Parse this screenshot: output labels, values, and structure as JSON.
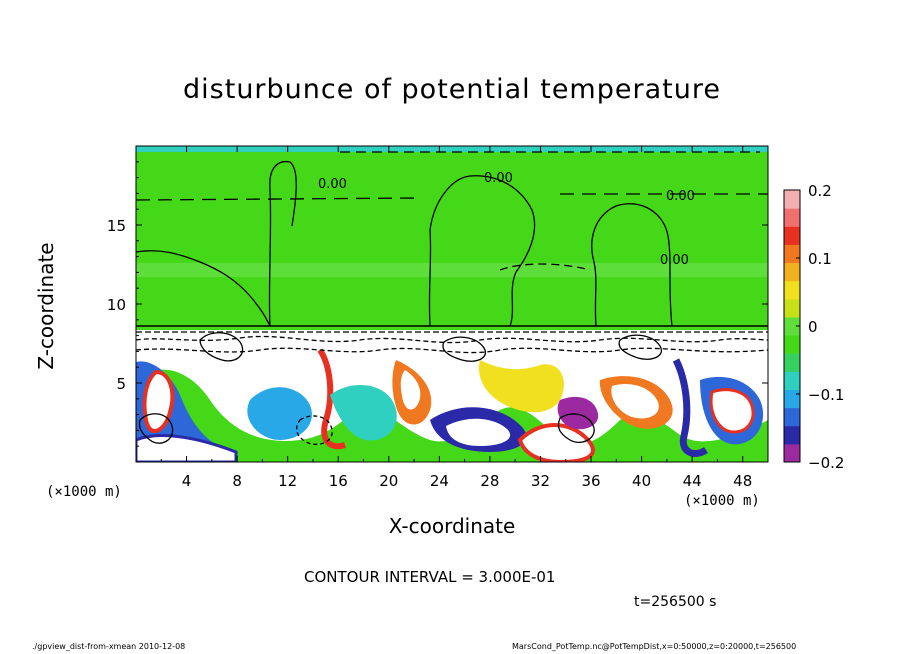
{
  "chart_data": {
    "type": "heatmap",
    "title": "disturbunce of potential temperature",
    "xlabel": "X-coordinate",
    "ylabel": "Z-coordinate",
    "x_unit_left": "(×1000 m)",
    "x_unit_right": "(×1000 m)",
    "xlim": [
      0,
      50
    ],
    "ylim": [
      0,
      20
    ],
    "xticks": [
      "4",
      "8",
      "12",
      "16",
      "20",
      "24",
      "28",
      "32",
      "36",
      "40",
      "44",
      "48"
    ],
    "yticks": [
      "5",
      "10",
      "15"
    ],
    "colorbar": {
      "range": [
        -0.2,
        0.2
      ],
      "ticks": [
        "0.2",
        "0.1",
        "0",
        "−0.1",
        "−0.2"
      ],
      "colors": [
        "#9b2aa0",
        "#2a2aa8",
        "#2e68d8",
        "#28a8e6",
        "#30d0c0",
        "#34d060",
        "#44d818",
        "#5ede3a",
        "#c8e018",
        "#f0e020",
        "#f0b020",
        "#f07820",
        "#e83020",
        "#f07070",
        "#f4b0b0"
      ]
    },
    "contour_labels": [
      "0.00",
      "0.00",
      "0.00",
      "0.00"
    ],
    "contour_interval": "CONTOUR INTERVAL = 3.000E-01",
    "background_value": 0.0,
    "grid": false
  },
  "time_label": "t=256500 s",
  "footer": {
    "left": "./gpview_dist-from-xmean   2010-12-08",
    "right": "MarsCond_PotTemp.nc@PotTempDist,x=0:50000,z=0:20000,t=256500"
  }
}
